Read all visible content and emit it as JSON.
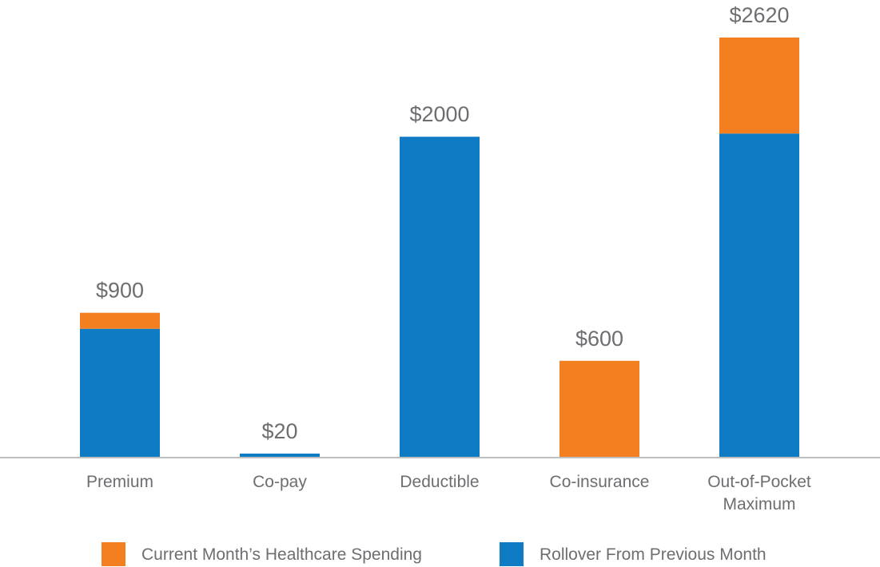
{
  "chart_data": {
    "type": "bar",
    "stacked": true,
    "title": "",
    "xlabel": "",
    "ylabel": "",
    "ylim": [
      0,
      2620
    ],
    "grid": false,
    "legend_position": "bottom",
    "categories": [
      [
        "Premium"
      ],
      [
        "Co-pay"
      ],
      [
        "Deductible"
      ],
      [
        "Co-insurance"
      ],
      [
        "Out-of-Pocket",
        "Maximum"
      ]
    ],
    "totals_labels": [
      "$900",
      "$20",
      "$2000",
      "$600",
      "$2620"
    ],
    "series": [
      {
        "name": "Rollover From Previous Month",
        "color": "#0f7bc5",
        "values": [
          800,
          20,
          2000,
          0,
          2020
        ]
      },
      {
        "name": "Current Month’s Healthcare Spending",
        "color": "#f47f20",
        "values": [
          100,
          0,
          0,
          600,
          600
        ]
      }
    ],
    "legend_order": [
      1,
      0
    ],
    "axis_color": "#bcbec0",
    "label_color": "#6d6e71"
  }
}
